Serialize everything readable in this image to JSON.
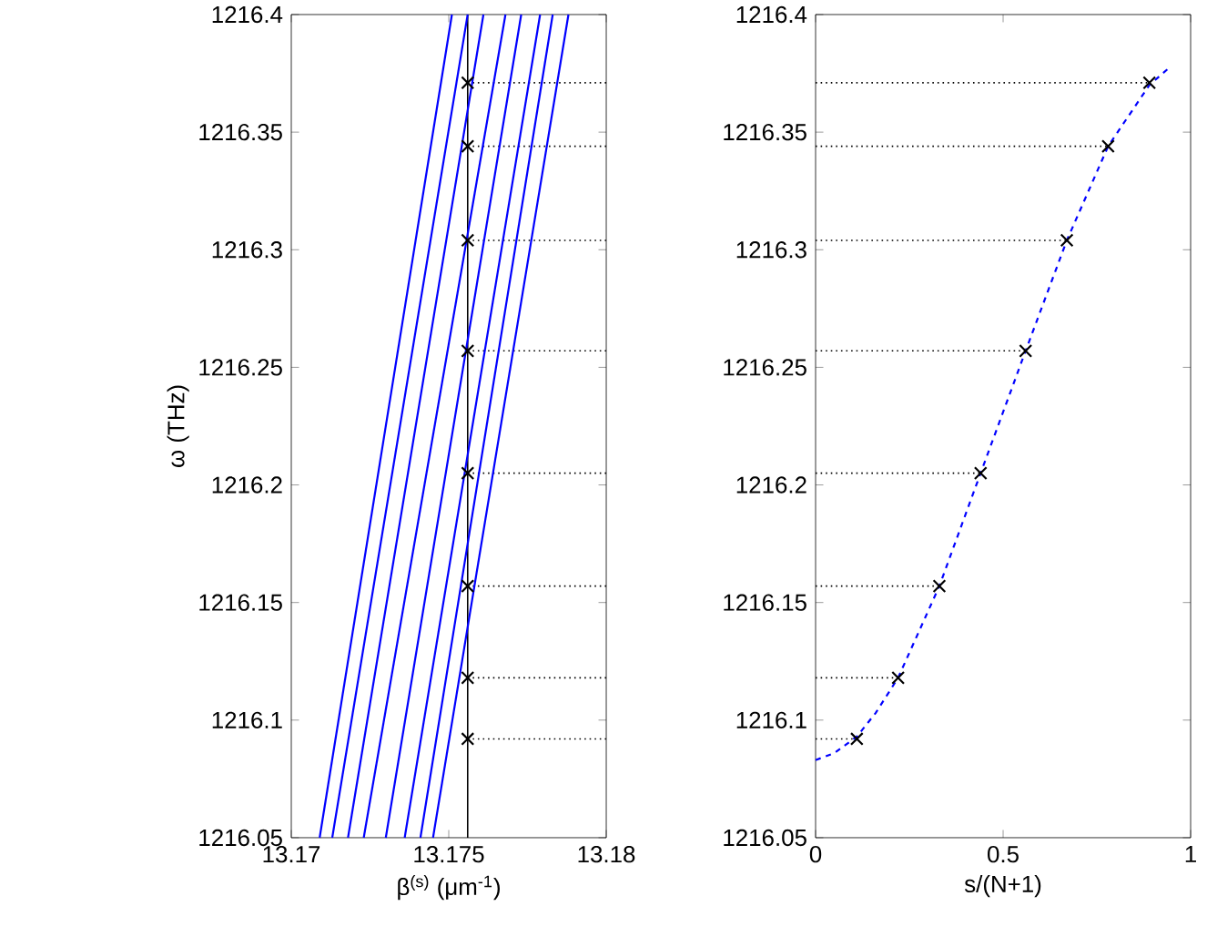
{
  "chart_data": [
    {
      "type": "line",
      "xlabel": "β$^{(s)}$ (μm$^{-1}$)",
      "ylabel": "ω (THz)",
      "xlim": [
        13.17,
        13.18
      ],
      "xticks": [
        13.17,
        13.175,
        13.18
      ],
      "ylim": [
        1216.05,
        1216.4
      ],
      "yticks": [
        1216.05,
        1216.1,
        1216.15,
        1216.2,
        1216.25,
        1216.3,
        1216.35,
        1216.4
      ],
      "series": [
        {
          "color": "#0000ff",
          "x": [
            13.1709,
            13.1751
          ],
          "values": [
            1216.05,
            1216.4
          ]
        },
        {
          "color": "#0000ff",
          "x": [
            13.1713,
            13.1756
          ],
          "values": [
            1216.05,
            1216.4
          ]
        },
        {
          "color": "#0000ff",
          "x": [
            13.1718,
            13.1761
          ],
          "values": [
            1216.05,
            1216.4
          ]
        },
        {
          "color": "#0000ff",
          "x": [
            13.1723,
            13.1768
          ],
          "values": [
            1216.05,
            1216.4
          ]
        },
        {
          "color": "#0000ff",
          "x": [
            13.173,
            13.1773
          ],
          "values": [
            1216.05,
            1216.4
          ]
        },
        {
          "color": "#0000ff",
          "x": [
            13.1736,
            13.1779
          ],
          "values": [
            1216.05,
            1216.4
          ]
        },
        {
          "color": "#0000ff",
          "x": [
            13.1741,
            13.1783
          ],
          "values": [
            1216.05,
            1216.4
          ]
        },
        {
          "color": "#0000ff",
          "x": [
            13.1745,
            13.1788
          ],
          "values": [
            1216.05,
            1216.4
          ]
        },
        {
          "type": "scatter",
          "marker": "cross",
          "color": "#000000",
          "x": [
            13.1756,
            13.1756,
            13.1756,
            13.1756,
            13.1756,
            13.1756,
            13.1756,
            13.1756
          ],
          "values": [
            1216.092,
            1216.118,
            1216.157,
            1216.205,
            1216.257,
            1216.304,
            1216.344,
            1216.371
          ]
        }
      ],
      "ref_lines": [
        {
          "axis": "x",
          "value": 13.1756,
          "color": "#000000",
          "line_style": "solid"
        },
        {
          "axis": "y",
          "value": 1216.092,
          "color": "#000000",
          "line_style": "dotted"
        },
        {
          "axis": "y",
          "value": 1216.118,
          "color": "#000000",
          "line_style": "dotted"
        },
        {
          "axis": "y",
          "value": 1216.157,
          "color": "#000000",
          "line_style": "dotted"
        },
        {
          "axis": "y",
          "value": 1216.205,
          "color": "#000000",
          "line_style": "dotted"
        },
        {
          "axis": "y",
          "value": 1216.257,
          "color": "#000000",
          "line_style": "dotted"
        },
        {
          "axis": "y",
          "value": 1216.304,
          "color": "#000000",
          "line_style": "dotted"
        },
        {
          "axis": "y",
          "value": 1216.344,
          "color": "#000000",
          "line_style": "dotted"
        },
        {
          "axis": "y",
          "value": 1216.371,
          "color": "#000000",
          "line_style": "dotted"
        }
      ]
    },
    {
      "type": "line",
      "xlabel": "s/(N+1)",
      "xlim": [
        0,
        1
      ],
      "xticks": [
        0,
        0.5,
        1
      ],
      "ylim": [
        1216.05,
        1216.4
      ],
      "yticks": [
        1216.05,
        1216.1,
        1216.15,
        1216.2,
        1216.25,
        1216.3,
        1216.35,
        1216.4
      ],
      "series": [
        {
          "color": "#0000ff",
          "line_style": "dashed",
          "x": [
            0,
            0.05,
            0.11,
            0.16,
            0.22,
            0.33,
            0.44,
            0.56,
            0.67,
            0.78,
            0.89,
            0.94
          ],
          "values": [
            1216.083,
            1216.086,
            1216.093,
            1216.103,
            1216.118,
            1216.157,
            1216.205,
            1216.257,
            1216.304,
            1216.344,
            1216.37,
            1216.377
          ]
        },
        {
          "type": "scatter",
          "marker": "cross",
          "color": "#000000",
          "x": [
            0.11,
            0.22,
            0.33,
            0.44,
            0.56,
            0.67,
            0.78,
            0.89
          ],
          "values": [
            1216.092,
            1216.118,
            1216.157,
            1216.205,
            1216.257,
            1216.304,
            1216.344,
            1216.371
          ]
        }
      ],
      "ref_lines": [
        {
          "axis": "y",
          "value": 1216.092,
          "color": "#000000",
          "line_style": "dotted"
        },
        {
          "axis": "y",
          "value": 1216.118,
          "color": "#000000",
          "line_style": "dotted"
        },
        {
          "axis": "y",
          "value": 1216.157,
          "color": "#000000",
          "line_style": "dotted"
        },
        {
          "axis": "y",
          "value": 1216.205,
          "color": "#000000",
          "line_style": "dotted"
        },
        {
          "axis": "y",
          "value": 1216.257,
          "color": "#000000",
          "line_style": "dotted"
        },
        {
          "axis": "y",
          "value": 1216.304,
          "color": "#000000",
          "line_style": "dotted"
        },
        {
          "axis": "y",
          "value": 1216.344,
          "color": "#000000",
          "line_style": "dotted"
        },
        {
          "axis": "y",
          "value": 1216.371,
          "color": "#000000",
          "line_style": "dotted"
        }
      ]
    }
  ]
}
